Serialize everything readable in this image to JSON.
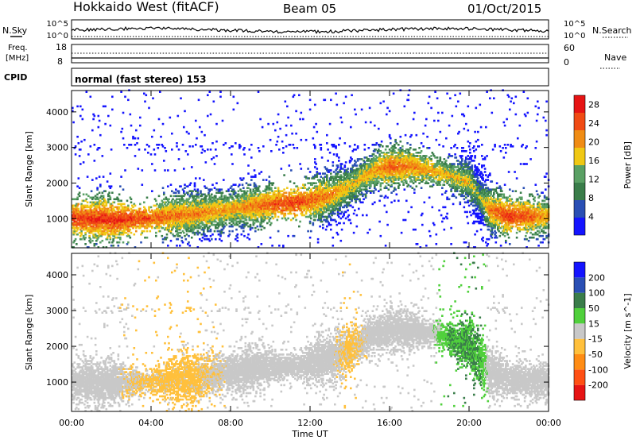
{
  "header": {
    "radar_title": "Hokkaido West (fitACF)",
    "beam": "Beam 05",
    "date": "01/Oct/2015"
  },
  "noise_panel": {
    "left_label": "N.Sky",
    "right_label": "N.Search",
    "left_ticks": [
      "10^5",
      "10^0"
    ],
    "right_ticks": [
      "10^5",
      "10^0"
    ]
  },
  "freq_panel": {
    "left_label_1": "Freq.",
    "left_label_2": "[MHz]",
    "right_label": "Nave",
    "left_ticks": [
      "18",
      "8"
    ],
    "right_ticks": [
      "60",
      "0"
    ]
  },
  "cpid": {
    "label": "CPID",
    "value": "normal (fast stereo) 153"
  },
  "colors": {
    "power_scale": [
      "#1414ff",
      "#2a4fb4",
      "#3a7d4a",
      "#5aa064",
      "#f0c814",
      "#f08c14",
      "#f04b14",
      "#e61414"
    ],
    "velocity_scale": [
      "#e61414",
      "#ff5014",
      "#ff8c14",
      "#ffc03c",
      "#c8c8c8",
      "#50d03c",
      "#3a7d4a",
      "#2a4fb4",
      "#1414ff"
    ]
  },
  "chart_data": [
    {
      "type": "heatmap",
      "name": "power",
      "xlabel": "Time UT",
      "ylabel": "Slant Range [km]",
      "xlim": [
        0,
        24
      ],
      "ylim": [
        180,
        4600
      ],
      "x_ticks": [
        "00:00",
        "04:00",
        "08:00",
        "12:00",
        "16:00",
        "20:00",
        "00:00"
      ],
      "y_ticks": [
        1000,
        2000,
        3000,
        4000
      ],
      "colorbar_label": "Power [dB]",
      "colorbar_ticks": [
        4,
        8,
        12,
        16,
        20,
        24,
        28
      ],
      "colorbar_range": [
        0,
        30
      ],
      "echo_bands": [
        {
          "t": [
            0,
            2,
            4,
            6,
            8,
            10,
            11,
            12,
            13,
            14,
            15,
            16,
            17,
            18,
            19,
            20,
            20.5,
            21,
            22,
            23,
            24
          ],
          "range": [
            1000,
            950,
            1000,
            1100,
            1250,
            1400,
            1420,
            1500,
            1650,
            1900,
            2300,
            2450,
            2450,
            2350,
            2200,
            2000,
            1600,
            1250,
            1050,
            1050,
            1050
          ],
          "power": [
            26,
            27,
            24,
            22,
            20,
            24,
            26,
            24,
            22,
            18,
            20,
            24,
            22,
            20,
            18,
            18,
            14,
            22,
            26,
            24,
            20
          ]
        }
      ]
    },
    {
      "type": "heatmap",
      "name": "velocity",
      "xlabel": "Time UT",
      "ylabel": "Slant Range [km]",
      "xlim": [
        0,
        24
      ],
      "ylim": [
        180,
        4600
      ],
      "x_ticks": [
        "00:00",
        "04:00",
        "08:00",
        "12:00",
        "16:00",
        "20:00",
        "00:00"
      ],
      "y_ticks": [
        1000,
        2000,
        3000,
        4000
      ],
      "colorbar_label": "Velocity [m s^-1]",
      "colorbar_ticks": [
        -200,
        -100,
        -50,
        -15,
        15,
        50,
        100,
        200
      ],
      "echo_bands": [
        {
          "t": [
            0,
            2,
            4,
            6,
            8,
            10,
            11,
            12,
            13,
            14,
            15,
            16,
            17,
            18,
            19,
            20,
            20.5,
            21,
            22,
            23,
            24
          ],
          "range": [
            1000,
            950,
            1000,
            1100,
            1250,
            1400,
            1420,
            1500,
            1650,
            1900,
            2300,
            2450,
            2450,
            2350,
            2200,
            2000,
            1600,
            1250,
            1050,
            1050,
            1050
          ],
          "velocity": [
            0,
            0,
            -20,
            -20,
            0,
            0,
            0,
            0,
            0,
            -20,
            0,
            0,
            0,
            0,
            40,
            40,
            40,
            0,
            0,
            0,
            0
          ]
        }
      ]
    }
  ]
}
